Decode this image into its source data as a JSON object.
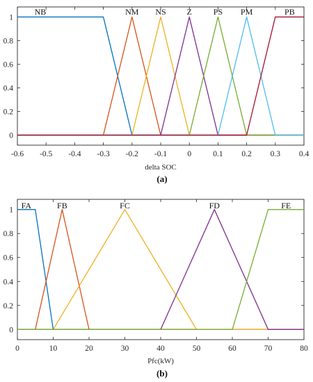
{
  "chart_data": [
    {
      "type": "line",
      "caption": "(a)",
      "xlabel": "delta SOC",
      "ylabel": "",
      "xlim": [
        -0.6,
        0.4
      ],
      "ylim": [
        0,
        1
      ],
      "xticks": [
        -0.6,
        -0.5,
        -0.4,
        -0.3,
        -0.2,
        -0.1,
        0,
        0.1,
        0.2,
        0.3,
        0.4
      ],
      "xtick_labels": [
        "-0.6",
        "-0.5",
        "-0.4",
        "-0.3",
        "-0.2",
        "-0.1",
        "0",
        "0.1",
        "0.2",
        "0.3",
        "0.4"
      ],
      "yticks": [
        0,
        0.2,
        0.4,
        0.6,
        0.8,
        1
      ],
      "ytick_labels": [
        "0",
        "0.2",
        "0.4",
        "0.6",
        "0.8",
        "1"
      ],
      "grid": false,
      "series": [
        {
          "name": "NB",
          "color": "#0072BD",
          "x": [
            -0.6,
            -0.3,
            -0.2,
            0.4
          ],
          "y": [
            1,
            1,
            0,
            0
          ],
          "label_x": -0.52
        },
        {
          "name": "NM",
          "color": "#D95319",
          "x": [
            -0.6,
            -0.3,
            -0.2,
            -0.1,
            0.4
          ],
          "y": [
            0,
            0,
            1,
            0,
            0
          ],
          "label_x": -0.2
        },
        {
          "name": "NS",
          "color": "#EDB120",
          "x": [
            -0.6,
            -0.2,
            -0.1,
            0,
            0.4
          ],
          "y": [
            0,
            0,
            1,
            0,
            0
          ],
          "label_x": -0.1
        },
        {
          "name": "Z",
          "color": "#7E2F8E",
          "x": [
            -0.6,
            -0.1,
            0,
            0.1,
            0.4
          ],
          "y": [
            0,
            0,
            1,
            0,
            0
          ],
          "label_x": 0
        },
        {
          "name": "PS",
          "color": "#77AC30",
          "x": [
            -0.6,
            0,
            0.1,
            0.2,
            0.4
          ],
          "y": [
            0,
            0,
            1,
            0,
            0
          ],
          "label_x": 0.1
        },
        {
          "name": "PM",
          "color": "#4DBEEE",
          "x": [
            -0.6,
            0.1,
            0.2,
            0.3,
            0.4
          ],
          "y": [
            0,
            0,
            1,
            0,
            0
          ],
          "label_x": 0.2
        },
        {
          "name": "PB",
          "color": "#A2142F",
          "x": [
            -0.6,
            0.2,
            0.3,
            0.4
          ],
          "y": [
            0,
            0,
            1,
            1
          ],
          "label_x": 0.35
        }
      ]
    },
    {
      "type": "line",
      "caption": "(b)",
      "xlabel": "Pfc(kW)",
      "ylabel": "",
      "xlim": [
        0,
        80
      ],
      "ylim": [
        0,
        1
      ],
      "xticks": [
        0,
        10,
        20,
        30,
        40,
        50,
        60,
        70,
        80
      ],
      "xtick_labels": [
        "0",
        "10",
        "20",
        "30",
        "40",
        "50",
        "60",
        "70",
        "80"
      ],
      "yticks": [
        0,
        0.2,
        0.4,
        0.6,
        0.8,
        1
      ],
      "ytick_labels": [
        "0",
        "0.2",
        "0.4",
        "0.6",
        "0.8",
        "1"
      ],
      "grid": false,
      "series": [
        {
          "name": "FA",
          "color": "#0072BD",
          "x": [
            0,
            5,
            10,
            80
          ],
          "y": [
            1,
            1,
            0,
            0
          ],
          "label_x": 2.5
        },
        {
          "name": "FB",
          "color": "#D95319",
          "x": [
            0,
            5,
            12.5,
            20,
            80
          ],
          "y": [
            0,
            0,
            1,
            0,
            0
          ],
          "label_x": 12.5
        },
        {
          "name": "FC",
          "color": "#EDB120",
          "x": [
            0,
            10,
            30,
            50,
            80
          ],
          "y": [
            0,
            0,
            1,
            0,
            0
          ],
          "label_x": 30
        },
        {
          "name": "FD",
          "color": "#7E2F8E",
          "x": [
            0,
            40,
            55,
            70,
            80
          ],
          "y": [
            0,
            0,
            1,
            0,
            0
          ],
          "label_x": 55
        },
        {
          "name": "FE",
          "color": "#77AC30",
          "x": [
            0,
            60,
            70,
            80
          ],
          "y": [
            0,
            0,
            1,
            1
          ],
          "label_x": 75
        }
      ]
    }
  ]
}
